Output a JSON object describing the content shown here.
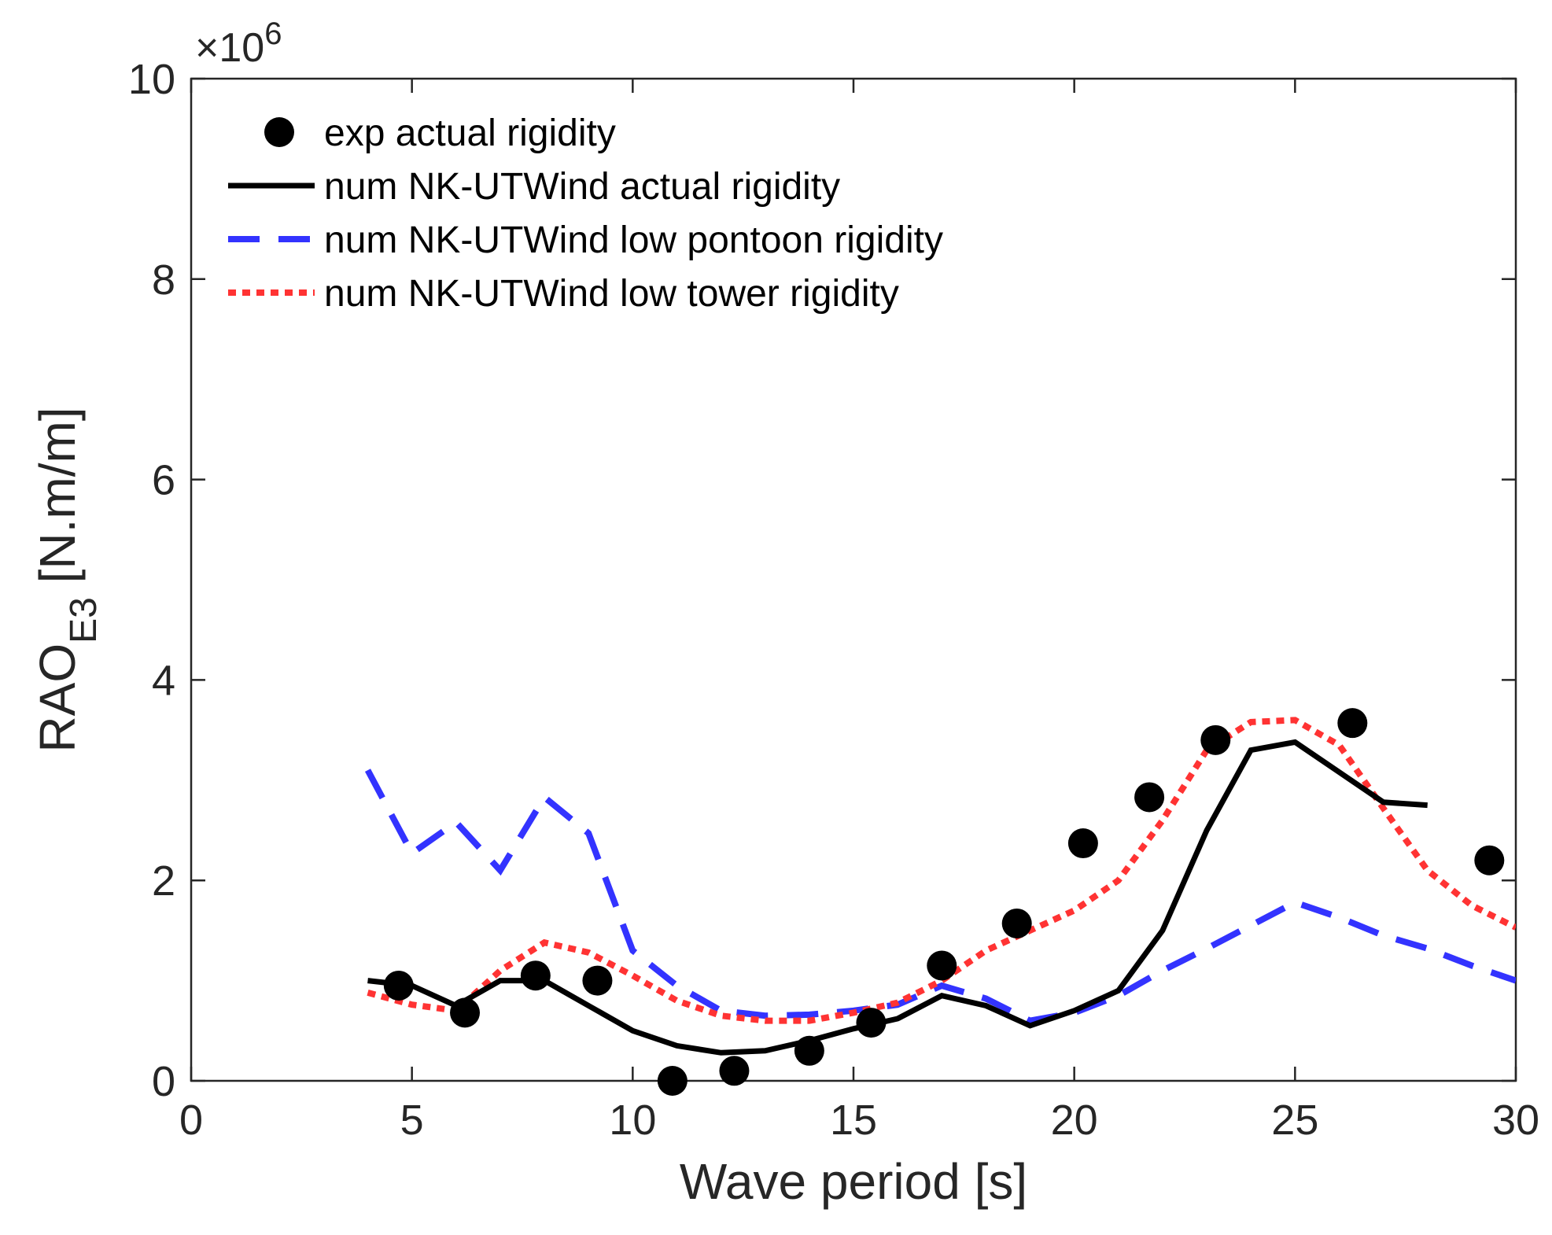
{
  "chart_data": {
    "type": "line",
    "title": "",
    "xlabel": "Wave period [s]",
    "ylabel_main": "RAO",
    "ylabel_sub": "E3",
    "ylabel_unit": " [N.m/m]",
    "xlim": [
      0,
      30
    ],
    "ylim": [
      0,
      10
    ],
    "x_ticks": [
      0,
      5,
      10,
      15,
      20,
      25,
      30
    ],
    "x_tick_labels": [
      "0",
      "5",
      "10",
      "15",
      "20",
      "25",
      "30"
    ],
    "y_ticks": [
      0,
      2,
      4,
      6,
      8,
      10
    ],
    "y_tick_labels": [
      "0",
      "2",
      "4",
      "6",
      "8",
      "10"
    ],
    "y_scale_prefix": "×10",
    "y_scale_exponent": "6",
    "grid": false,
    "legend_position": "top-left",
    "series": [
      {
        "name": "exp actual rigidity",
        "kind": "scatter",
        "color": "#000000",
        "x": [
          4.7,
          6.2,
          7.8,
          9.2,
          10.9,
          12.3,
          14.0,
          15.4,
          17.0,
          18.7,
          20.2,
          21.7,
          23.2,
          26.3,
          29.4
        ],
        "y": [
          0.95,
          0.68,
          1.05,
          1.0,
          0.0,
          0.1,
          0.3,
          0.58,
          1.15,
          1.57,
          2.37,
          2.83,
          3.4,
          3.57,
          2.2
        ]
      },
      {
        "name": "num NK-UTWind actual rigidity",
        "kind": "line",
        "style": "solid",
        "color": "#000000",
        "x": [
          4,
          5,
          6,
          7,
          8,
          9,
          10,
          11,
          12,
          13,
          14,
          15,
          16,
          17,
          18,
          19,
          20,
          21,
          22,
          23,
          24,
          25,
          26,
          27,
          28
        ],
        "y": [
          1.0,
          0.95,
          0.75,
          1.0,
          1.0,
          0.75,
          0.5,
          0.35,
          0.28,
          0.3,
          0.4,
          0.52,
          0.62,
          0.85,
          0.75,
          0.55,
          0.7,
          0.9,
          1.5,
          2.5,
          3.3,
          3.38,
          3.08,
          2.78,
          2.75
        ]
      },
      {
        "name": "num NK-UTWind low pontoon rigidity",
        "kind": "line",
        "style": "dashed",
        "color": "#3333ff",
        "x": [
          4,
          5,
          6,
          7,
          8,
          9,
          10,
          11,
          12,
          13,
          14,
          15,
          16,
          17,
          18,
          19,
          20,
          21,
          22,
          23,
          24,
          25,
          26,
          27,
          28,
          29,
          30
        ],
        "y": [
          3.1,
          2.27,
          2.58,
          2.1,
          2.83,
          2.47,
          1.3,
          0.95,
          0.7,
          0.65,
          0.66,
          0.7,
          0.76,
          0.95,
          0.82,
          0.6,
          0.68,
          0.85,
          1.1,
          1.32,
          1.55,
          1.78,
          1.63,
          1.45,
          1.32,
          1.15,
          1.0
        ]
      },
      {
        "name": "num NK-UTWind low tower rigidity",
        "kind": "line",
        "style": "dotted",
        "color": "#ff3333",
        "x": [
          4,
          5,
          6,
          7,
          8,
          9,
          10,
          11,
          12,
          13,
          14,
          15,
          16,
          17,
          18,
          19,
          20,
          21,
          22,
          23,
          24,
          25,
          26,
          27,
          28,
          29,
          30
        ],
        "y": [
          0.88,
          0.76,
          0.7,
          1.1,
          1.38,
          1.28,
          1.05,
          0.8,
          0.65,
          0.6,
          0.6,
          0.68,
          0.78,
          1.0,
          1.3,
          1.5,
          1.7,
          2.0,
          2.6,
          3.3,
          3.58,
          3.6,
          3.35,
          2.72,
          2.1,
          1.75,
          1.53
        ]
      }
    ]
  }
}
